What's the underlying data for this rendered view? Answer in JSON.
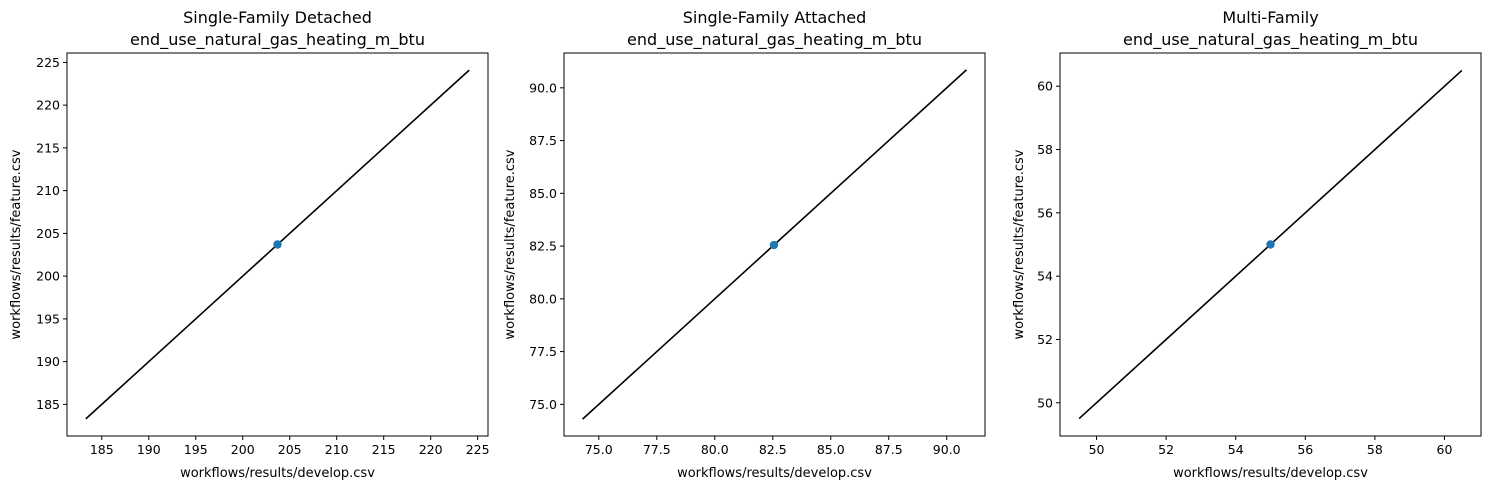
{
  "chart_data": [
    {
      "type": "scatter",
      "title": "Single-Family Detached",
      "subtitle": "end_use_natural_gas_heating_m_btu",
      "xlabel": "workflows/results/develop.csv",
      "ylabel": "workflows/results/feature.csv",
      "xlim": [
        181.3,
        226.1
      ],
      "ylim": [
        181.3,
        226.1
      ],
      "xticks": [
        185,
        190,
        195,
        200,
        205,
        210,
        215,
        220,
        225
      ],
      "yticks": [
        185,
        190,
        195,
        200,
        205,
        210,
        215,
        220,
        225
      ],
      "xtick_labels": [
        "185",
        "190",
        "195",
        "200",
        "205",
        "210",
        "215",
        "220",
        "225"
      ],
      "ytick_labels": [
        "185",
        "190",
        "195",
        "200",
        "205",
        "210",
        "215",
        "220",
        "225"
      ],
      "points": [
        {
          "x": 203.7,
          "y": 203.7
        }
      ],
      "reference_line": {
        "from": 183.3,
        "to": 224.1
      },
      "grid": false,
      "point_color": "#1f77b4",
      "line_color": "#000000"
    },
    {
      "type": "scatter",
      "title": "Single-Family Attached",
      "subtitle": "end_use_natural_gas_heating_m_btu",
      "xlabel": "workflows/results/develop.csv",
      "ylabel": "workflows/results/feature.csv",
      "xlim": [
        73.5,
        91.65
      ],
      "ylim": [
        73.5,
        91.65
      ],
      "xticks": [
        75.0,
        77.5,
        80.0,
        82.5,
        85.0,
        87.5,
        90.0
      ],
      "yticks": [
        75.0,
        77.5,
        80.0,
        82.5,
        85.0,
        87.5,
        90.0
      ],
      "xtick_labels": [
        "75.0",
        "77.5",
        "80.0",
        "82.5",
        "85.0",
        "87.5",
        "90.0"
      ],
      "ytick_labels": [
        "75.0",
        "77.5",
        "80.0",
        "82.5",
        "85.0",
        "87.5",
        "90.0"
      ],
      "points": [
        {
          "x": 82.55,
          "y": 82.55
        }
      ],
      "reference_line": {
        "from": 74.3,
        "to": 90.85
      },
      "grid": false,
      "point_color": "#1f77b4",
      "line_color": "#000000"
    },
    {
      "type": "scatter",
      "title": "Multi-Family",
      "subtitle": "end_use_natural_gas_heating_m_btu",
      "xlabel": "workflows/results/develop.csv",
      "ylabel": "workflows/results/feature.csv",
      "xlim": [
        48.95,
        61.05
      ],
      "ylim": [
        48.95,
        61.05
      ],
      "xticks": [
        50,
        52,
        54,
        56,
        58,
        60
      ],
      "yticks": [
        50,
        52,
        54,
        56,
        58,
        60
      ],
      "xtick_labels": [
        "50",
        "52",
        "54",
        "56",
        "58",
        "60"
      ],
      "ytick_labels": [
        "50",
        "52",
        "54",
        "56",
        "58",
        "60"
      ],
      "points": [
        {
          "x": 55.0,
          "y": 55.0
        }
      ],
      "reference_line": {
        "from": 49.5,
        "to": 60.5
      },
      "grid": false,
      "point_color": "#1f77b4",
      "line_color": "#000000"
    }
  ]
}
